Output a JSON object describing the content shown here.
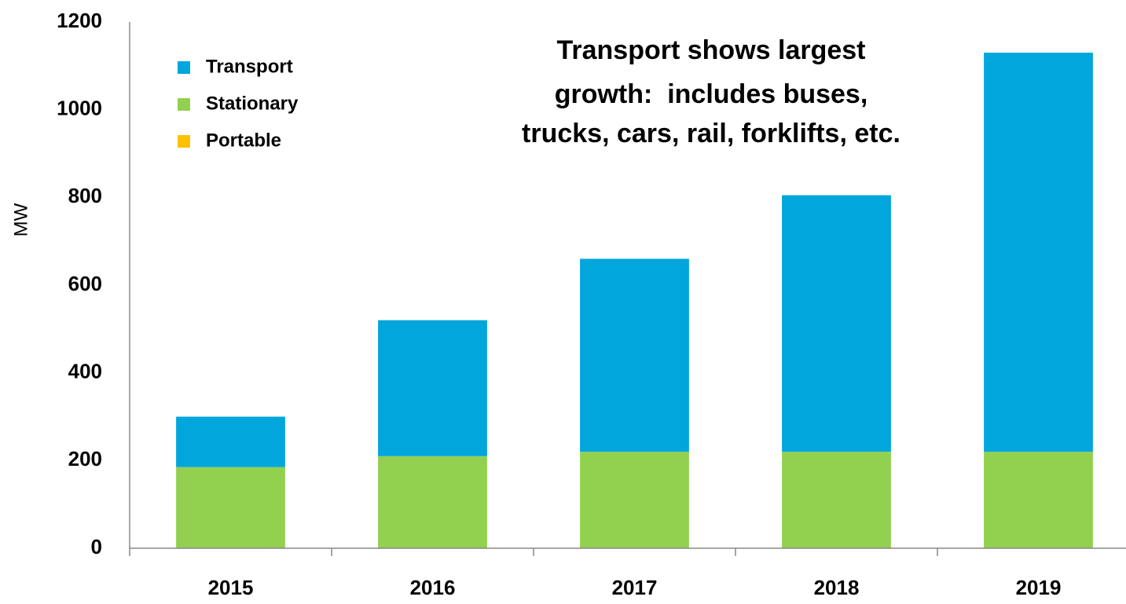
{
  "chart_data": {
    "type": "stacked_bar",
    "annotation": [
      "Transport shows largest",
      "growth:  includes buses,",
      "trucks, cars, rail, forklifts, etc."
    ],
    "y_label": "MW",
    "categories": [
      "2015",
      "2016",
      "2017",
      "2018",
      "2019"
    ],
    "series": [
      {
        "name": "Portable",
        "color": "#ffc000",
        "values": [
          0,
          0,
          0,
          0,
          0
        ]
      },
      {
        "name": "Stationary",
        "color": "#92d050",
        "values": [
          185,
          210,
          220,
          220,
          220
        ]
      },
      {
        "name": "Transport",
        "color": "#00a6dc",
        "values": [
          115,
          310,
          440,
          585,
          910
        ]
      }
    ],
    "ylim": [
      0,
      1200
    ],
    "yticks": [
      0,
      200,
      400,
      600,
      800,
      1000,
      1200
    ],
    "grid": false,
    "legend": "top-left"
  }
}
